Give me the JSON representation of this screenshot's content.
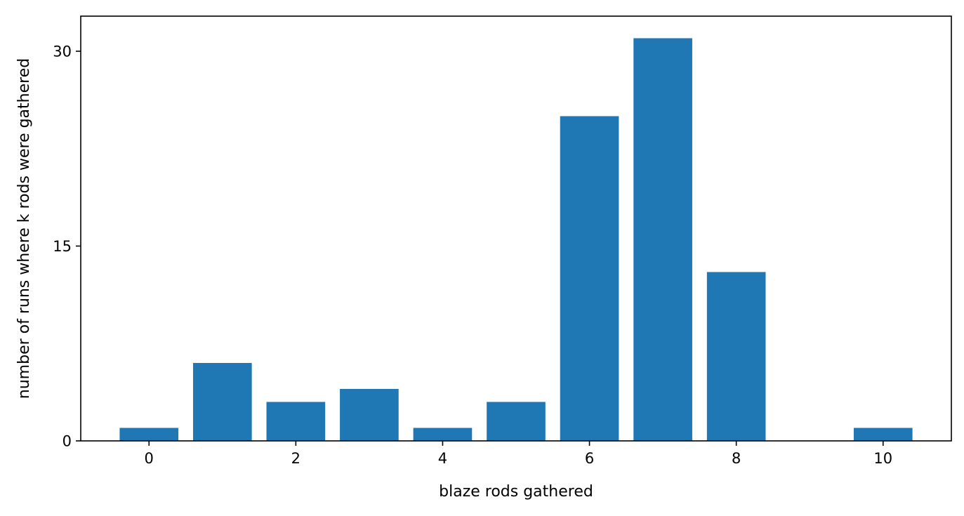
{
  "chart_data": {
    "type": "bar",
    "x": [
      0,
      1,
      2,
      3,
      4,
      5,
      6,
      7,
      8,
      9,
      10
    ],
    "values": [
      1,
      6,
      3,
      4,
      1,
      3,
      25,
      31,
      13,
      0,
      1
    ],
    "title": "",
    "xlabel": "blaze rods gathered",
    "ylabel": "number of runs where k rods were gathered",
    "xlim": [
      -0.93,
      10.93
    ],
    "ylim": [
      0,
      32.7
    ],
    "xticks": [
      0,
      2,
      4,
      6,
      8,
      10
    ],
    "yticks": [
      0,
      15,
      30
    ],
    "xtick_labels": [
      "0",
      "2",
      "4",
      "6",
      "8",
      "10"
    ],
    "ytick_labels": [
      "0",
      "15",
      "30"
    ],
    "bar_width": 0.8,
    "grid": false,
    "legend": "none",
    "colors": {
      "bar": "#1f77b4",
      "axes": "#000000",
      "background": "#ffffff"
    }
  }
}
